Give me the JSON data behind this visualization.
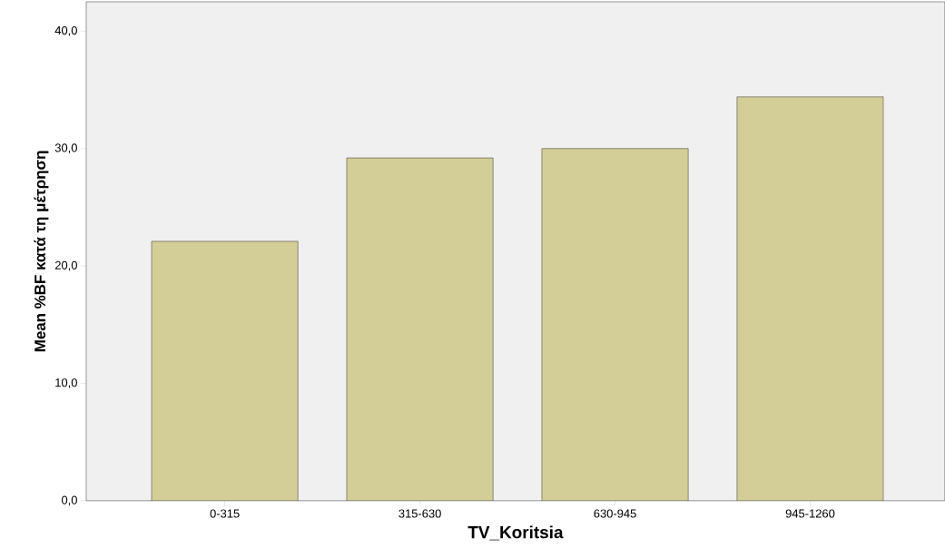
{
  "chart_data": {
    "type": "bar",
    "xlabel": "TV_Koritsia",
    "ylabel": "Mean %BF κατά τη μέτρηση",
    "categories": [
      "0-315",
      "315-630",
      "630-945",
      "945-1260"
    ],
    "values": [
      22.1,
      29.2,
      30.0,
      34.4
    ],
    "color": "#d3ce98",
    "ylim": [
      0,
      42.5
    ],
    "yticks": [
      {
        "value": 0,
        "label": "0,0"
      },
      {
        "value": 10,
        "label": "10,0"
      },
      {
        "value": 20,
        "label": "20,0"
      },
      {
        "value": 30,
        "label": "30,0"
      },
      {
        "value": 40,
        "label": "40,0"
      }
    ]
  }
}
